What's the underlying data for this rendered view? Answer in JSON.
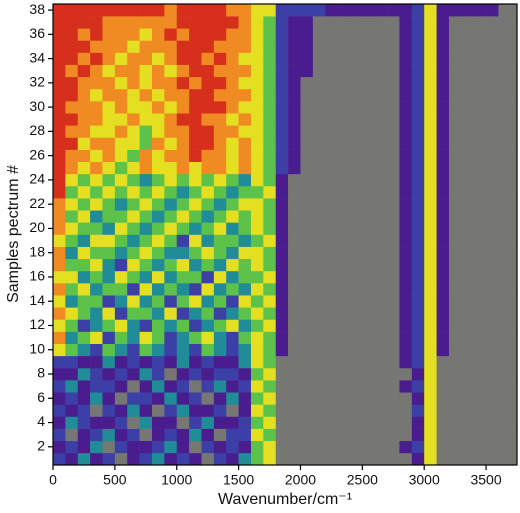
{
  "chart_data": {
    "type": "heatmap",
    "xlabel": "Wavenumber/cm⁻¹",
    "ylabel": "Samples pectrum #",
    "xlim": [
      0,
      3750
    ],
    "ylim": [
      0.5,
      38.5
    ],
    "xticks": [
      0,
      500,
      1000,
      1500,
      2000,
      2500,
      3000,
      3500
    ],
    "yticks": [
      2,
      4,
      6,
      8,
      10,
      12,
      14,
      16,
      18,
      20,
      22,
      24,
      26,
      28,
      30,
      32,
      34,
      36,
      38
    ],
    "colorscale": [
      "#767672",
      "#4a1d8e",
      "#3b3fa6",
      "#1f8c98",
      "#5cc24a",
      "#e4e021",
      "#f08a22",
      "#d6301c"
    ],
    "bins": [
      0,
      100,
      200,
      300,
      400,
      500,
      600,
      700,
      800,
      900,
      1000,
      1100,
      1200,
      1300,
      1400,
      1500,
      1600,
      1700,
      1800,
      1900,
      2000,
      2100,
      2200,
      2300,
      2400,
      2500,
      2600,
      2700,
      2800,
      2900,
      3000,
      3100,
      3200,
      3300,
      3400,
      3500,
      3600,
      3700,
      3750
    ],
    "y": [
      1,
      2,
      3,
      4,
      5,
      6,
      7,
      8,
      9,
      10,
      11,
      12,
      13,
      14,
      15,
      16,
      17,
      18,
      19,
      20,
      21,
      22,
      23,
      24,
      25,
      26,
      27,
      28,
      29,
      30,
      31,
      32,
      33,
      34,
      35,
      36,
      37,
      38
    ],
    "z": [
      [
        2,
        1,
        3,
        1,
        2,
        0,
        1,
        2,
        3,
        1,
        2,
        1,
        0,
        2,
        1,
        3,
        4,
        5,
        0,
        0,
        0,
        0,
        0,
        0,
        0,
        0,
        0,
        0,
        0,
        1,
        5,
        0,
        0,
        0,
        0,
        0,
        0,
        0
      ],
      [
        1,
        2,
        1,
        3,
        0,
        2,
        1,
        1,
        2,
        3,
        1,
        0,
        2,
        1,
        2,
        1,
        4,
        5,
        0,
        0,
        0,
        0,
        0,
        0,
        0,
        0,
        0,
        0,
        1,
        2,
        5,
        0,
        0,
        0,
        0,
        0,
        0,
        0
      ],
      [
        2,
        0,
        1,
        2,
        3,
        1,
        2,
        0,
        1,
        2,
        1,
        3,
        1,
        0,
        2,
        2,
        5,
        4,
        0,
        0,
        0,
        0,
        0,
        0,
        0,
        0,
        0,
        0,
        0,
        1,
        5,
        0,
        0,
        0,
        0,
        0,
        0,
        0
      ],
      [
        1,
        3,
        2,
        1,
        1,
        2,
        0,
        3,
        1,
        1,
        0,
        2,
        3,
        1,
        1,
        2,
        4,
        5,
        0,
        0,
        0,
        0,
        0,
        0,
        0,
        0,
        0,
        0,
        0,
        1,
        5,
        0,
        0,
        0,
        0,
        0,
        0,
        0
      ],
      [
        2,
        1,
        2,
        0,
        2,
        1,
        3,
        1,
        0,
        2,
        3,
        1,
        1,
        2,
        0,
        1,
        5,
        4,
        0,
        0,
        0,
        0,
        0,
        0,
        0,
        0,
        0,
        0,
        0,
        2,
        5,
        0,
        0,
        0,
        0,
        0,
        0,
        0
      ],
      [
        1,
        2,
        1,
        3,
        1,
        0,
        2,
        2,
        1,
        3,
        1,
        2,
        0,
        1,
        3,
        1,
        4,
        5,
        0,
        0,
        0,
        0,
        0,
        0,
        0,
        0,
        0,
        0,
        0,
        1,
        5,
        0,
        0,
        0,
        0,
        0,
        0,
        0
      ],
      [
        2,
        3,
        1,
        2,
        2,
        1,
        0,
        1,
        3,
        1,
        2,
        0,
        2,
        3,
        1,
        2,
        5,
        4,
        0,
        0,
        0,
        0,
        0,
        0,
        0,
        0,
        0,
        0,
        1,
        2,
        5,
        0,
        0,
        0,
        0,
        0,
        0,
        0
      ],
      [
        1,
        1,
        3,
        2,
        1,
        2,
        1,
        3,
        2,
        0,
        1,
        2,
        1,
        2,
        2,
        1,
        4,
        5,
        0,
        0,
        0,
        0,
        0,
        0,
        0,
        0,
        0,
        0,
        0,
        1,
        5,
        0,
        0,
        0,
        0,
        0,
        0,
        0
      ],
      [
        2,
        2,
        1,
        1,
        3,
        1,
        2,
        1,
        2,
        1,
        3,
        1,
        2,
        1,
        1,
        3,
        5,
        4,
        0,
        0,
        0,
        0,
        0,
        0,
        0,
        0,
        0,
        0,
        1,
        2,
        5,
        0,
        0,
        0,
        0,
        0,
        0,
        0
      ],
      [
        5,
        4,
        3,
        2,
        4,
        3,
        2,
        4,
        3,
        2,
        3,
        2,
        4,
        3,
        2,
        3,
        5,
        4,
        1,
        0,
        0,
        0,
        0,
        0,
        0,
        0,
        0,
        0,
        1,
        2,
        5,
        1,
        0,
        0,
        0,
        0,
        0,
        0
      ],
      [
        6,
        3,
        4,
        5,
        2,
        4,
        3,
        5,
        4,
        2,
        3,
        4,
        5,
        3,
        2,
        4,
        5,
        4,
        1,
        0,
        0,
        0,
        0,
        0,
        0,
        0,
        0,
        0,
        1,
        2,
        5,
        1,
        0,
        0,
        0,
        0,
        0,
        0
      ],
      [
        5,
        4,
        2,
        3,
        4,
        5,
        3,
        2,
        4,
        3,
        4,
        2,
        3,
        4,
        5,
        3,
        4,
        5,
        1,
        0,
        0,
        0,
        0,
        0,
        0,
        0,
        0,
        0,
        1,
        2,
        5,
        1,
        0,
        0,
        0,
        0,
        0,
        0
      ],
      [
        6,
        5,
        4,
        3,
        5,
        2,
        4,
        4,
        3,
        5,
        2,
        3,
        4,
        2,
        3,
        4,
        5,
        4,
        1,
        0,
        0,
        0,
        0,
        0,
        0,
        0,
        0,
        0,
        1,
        2,
        5,
        1,
        0,
        0,
        0,
        0,
        0,
        0
      ],
      [
        5,
        3,
        4,
        4,
        2,
        3,
        5,
        3,
        4,
        2,
        4,
        5,
        3,
        4,
        2,
        5,
        4,
        5,
        1,
        0,
        0,
        0,
        0,
        0,
        0,
        0,
        0,
        0,
        1,
        2,
        5,
        1,
        0,
        0,
        0,
        0,
        0,
        0
      ],
      [
        6,
        4,
        5,
        3,
        4,
        4,
        2,
        5,
        3,
        4,
        3,
        2,
        5,
        3,
        4,
        3,
        5,
        4,
        1,
        0,
        0,
        0,
        0,
        0,
        0,
        0,
        0,
        0,
        1,
        2,
        5,
        1,
        0,
        0,
        0,
        0,
        0,
        0
      ],
      [
        5,
        5,
        3,
        4,
        3,
        5,
        4,
        3,
        5,
        3,
        4,
        4,
        2,
        5,
        3,
        4,
        4,
        5,
        1,
        0,
        0,
        0,
        0,
        0,
        0,
        0,
        0,
        0,
        1,
        2,
        5,
        1,
        0,
        0,
        0,
        0,
        0,
        0
      ],
      [
        6,
        4,
        4,
        5,
        3,
        2,
        5,
        4,
        3,
        4,
        5,
        3,
        4,
        3,
        5,
        4,
        5,
        4,
        1,
        0,
        0,
        0,
        0,
        0,
        0,
        0,
        0,
        0,
        1,
        2,
        5,
        1,
        0,
        0,
        0,
        0,
        0,
        0
      ],
      [
        6,
        3,
        5,
        4,
        4,
        3,
        4,
        5,
        4,
        3,
        3,
        4,
        5,
        4,
        3,
        5,
        5,
        4,
        1,
        0,
        0,
        0,
        0,
        0,
        0,
        0,
        0,
        0,
        1,
        2,
        5,
        1,
        0,
        0,
        0,
        0,
        0,
        0
      ],
      [
        5,
        4,
        3,
        5,
        5,
        4,
        3,
        4,
        5,
        4,
        2,
        5,
        3,
        4,
        4,
        3,
        4,
        5,
        1,
        0,
        0,
        0,
        0,
        0,
        0,
        0,
        0,
        0,
        1,
        2,
        5,
        1,
        0,
        0,
        0,
        0,
        0,
        0
      ],
      [
        6,
        5,
        4,
        4,
        3,
        5,
        4,
        3,
        4,
        5,
        4,
        3,
        4,
        5,
        3,
        4,
        5,
        4,
        1,
        0,
        0,
        0,
        0,
        0,
        0,
        0,
        0,
        0,
        1,
        2,
        5,
        1,
        0,
        0,
        0,
        0,
        0,
        0
      ],
      [
        6,
        4,
        5,
        3,
        4,
        4,
        5,
        4,
        3,
        4,
        5,
        4,
        3,
        4,
        5,
        4,
        5,
        4,
        1,
        0,
        0,
        0,
        0,
        0,
        0,
        0,
        0,
        0,
        1,
        2,
        5,
        1,
        0,
        0,
        0,
        0,
        0,
        0
      ],
      [
        6,
        5,
        4,
        5,
        4,
        3,
        4,
        5,
        4,
        3,
        4,
        5,
        4,
        3,
        4,
        5,
        5,
        4,
        1,
        0,
        0,
        0,
        0,
        0,
        0,
        0,
        0,
        0,
        1,
        2,
        5,
        1,
        0,
        0,
        0,
        0,
        0,
        0
      ],
      [
        7,
        4,
        5,
        4,
        5,
        4,
        5,
        4,
        5,
        4,
        3,
        4,
        5,
        4,
        3,
        4,
        4,
        5,
        1,
        0,
        0,
        0,
        0,
        0,
        0,
        0,
        0,
        0,
        1,
        2,
        5,
        1,
        0,
        0,
        0,
        0,
        0,
        0
      ],
      [
        7,
        5,
        4,
        5,
        4,
        5,
        4,
        3,
        4,
        5,
        4,
        5,
        4,
        5,
        4,
        3,
        5,
        4,
        1,
        0,
        0,
        0,
        0,
        0,
        0,
        0,
        0,
        0,
        1,
        2,
        5,
        1,
        0,
        0,
        0,
        0,
        0,
        0
      ],
      [
        7,
        6,
        5,
        6,
        5,
        4,
        5,
        6,
        5,
        5,
        6,
        5,
        6,
        6,
        5,
        6,
        5,
        4,
        2,
        1,
        0,
        0,
        0,
        0,
        0,
        0,
        0,
        0,
        1,
        2,
        5,
        1,
        0,
        0,
        0,
        0,
        0,
        0
      ],
      [
        7,
        6,
        6,
        5,
        6,
        5,
        4,
        6,
        5,
        6,
        6,
        7,
        6,
        6,
        5,
        6,
        5,
        4,
        2,
        1,
        0,
        0,
        0,
        0,
        0,
        0,
        0,
        0,
        1,
        2,
        5,
        1,
        0,
        0,
        0,
        0,
        0,
        0
      ],
      [
        7,
        7,
        5,
        6,
        6,
        5,
        5,
        4,
        6,
        5,
        6,
        7,
        7,
        6,
        5,
        6,
        5,
        4,
        2,
        1,
        0,
        0,
        0,
        0,
        0,
        0,
        0,
        0,
        1,
        2,
        5,
        1,
        0,
        0,
        0,
        0,
        0,
        0
      ],
      [
        7,
        6,
        6,
        5,
        5,
        6,
        5,
        4,
        5,
        6,
        6,
        7,
        7,
        6,
        6,
        5,
        5,
        4,
        2,
        1,
        0,
        0,
        0,
        0,
        0,
        0,
        0,
        0,
        1,
        2,
        5,
        1,
        0,
        0,
        0,
        0,
        0,
        0
      ],
      [
        7,
        7,
        6,
        6,
        5,
        5,
        6,
        5,
        5,
        6,
        7,
        7,
        6,
        6,
        5,
        6,
        5,
        4,
        2,
        1,
        0,
        0,
        0,
        0,
        0,
        0,
        0,
        0,
        1,
        2,
        5,
        1,
        0,
        0,
        0,
        0,
        0,
        0
      ],
      [
        7,
        6,
        6,
        6,
        5,
        6,
        5,
        5,
        6,
        5,
        6,
        7,
        7,
        7,
        6,
        5,
        5,
        4,
        2,
        1,
        0,
        0,
        0,
        0,
        0,
        0,
        0,
        0,
        1,
        2,
        5,
        1,
        0,
        0,
        0,
        0,
        0,
        0
      ],
      [
        7,
        7,
        6,
        5,
        6,
        6,
        5,
        6,
        5,
        6,
        6,
        7,
        7,
        6,
        6,
        6,
        5,
        4,
        2,
        1,
        0,
        0,
        0,
        0,
        0,
        0,
        0,
        0,
        1,
        2,
        5,
        1,
        0,
        0,
        0,
        0,
        0,
        0
      ],
      [
        7,
        7,
        6,
        6,
        6,
        5,
        6,
        5,
        6,
        6,
        7,
        6,
        7,
        7,
        6,
        5,
        5,
        4,
        2,
        1,
        0,
        0,
        0,
        0,
        0,
        0,
        0,
        0,
        1,
        2,
        5,
        1,
        0,
        0,
        0,
        0,
        0,
        0
      ],
      [
        7,
        6,
        7,
        6,
        5,
        6,
        6,
        5,
        6,
        5,
        6,
        7,
        7,
        6,
        6,
        6,
        5,
        4,
        2,
        1,
        1,
        0,
        0,
        0,
        0,
        0,
        0,
        0,
        1,
        2,
        5,
        1,
        0,
        0,
        0,
        0,
        0,
        0
      ],
      [
        7,
        7,
        6,
        7,
        6,
        5,
        6,
        6,
        5,
        6,
        7,
        7,
        6,
        7,
        6,
        5,
        5,
        4,
        2,
        1,
        1,
        0,
        0,
        0,
        0,
        0,
        0,
        0,
        1,
        2,
        5,
        1,
        0,
        0,
        0,
        0,
        0,
        0
      ],
      [
        7,
        7,
        7,
        6,
        6,
        6,
        5,
        6,
        6,
        6,
        7,
        7,
        7,
        6,
        6,
        6,
        5,
        4,
        2,
        1,
        1,
        0,
        0,
        0,
        0,
        0,
        0,
        0,
        1,
        2,
        5,
        1,
        0,
        0,
        0,
        0,
        0,
        0
      ],
      [
        7,
        7,
        6,
        7,
        6,
        6,
        6,
        5,
        6,
        7,
        6,
        7,
        7,
        7,
        6,
        6,
        5,
        4,
        2,
        1,
        1,
        0,
        0,
        0,
        0,
        0,
        0,
        0,
        1,
        2,
        5,
        1,
        0,
        0,
        0,
        0,
        0,
        0
      ],
      [
        7,
        7,
        7,
        7,
        6,
        6,
        6,
        6,
        6,
        6,
        7,
        7,
        7,
        7,
        7,
        6,
        5,
        4,
        2,
        1,
        1,
        0,
        0,
        0,
        0,
        0,
        0,
        0,
        1,
        2,
        5,
        1,
        0,
        0,
        0,
        0,
        0,
        0
      ],
      [
        7,
        7,
        7,
        7,
        7,
        7,
        7,
        7,
        7,
        6,
        7,
        7,
        7,
        7,
        6,
        6,
        5,
        5,
        2,
        2,
        2,
        2,
        1,
        1,
        1,
        1,
        1,
        1,
        1,
        2,
        5,
        1,
        1,
        1,
        1,
        1,
        0,
        0
      ]
    ]
  }
}
